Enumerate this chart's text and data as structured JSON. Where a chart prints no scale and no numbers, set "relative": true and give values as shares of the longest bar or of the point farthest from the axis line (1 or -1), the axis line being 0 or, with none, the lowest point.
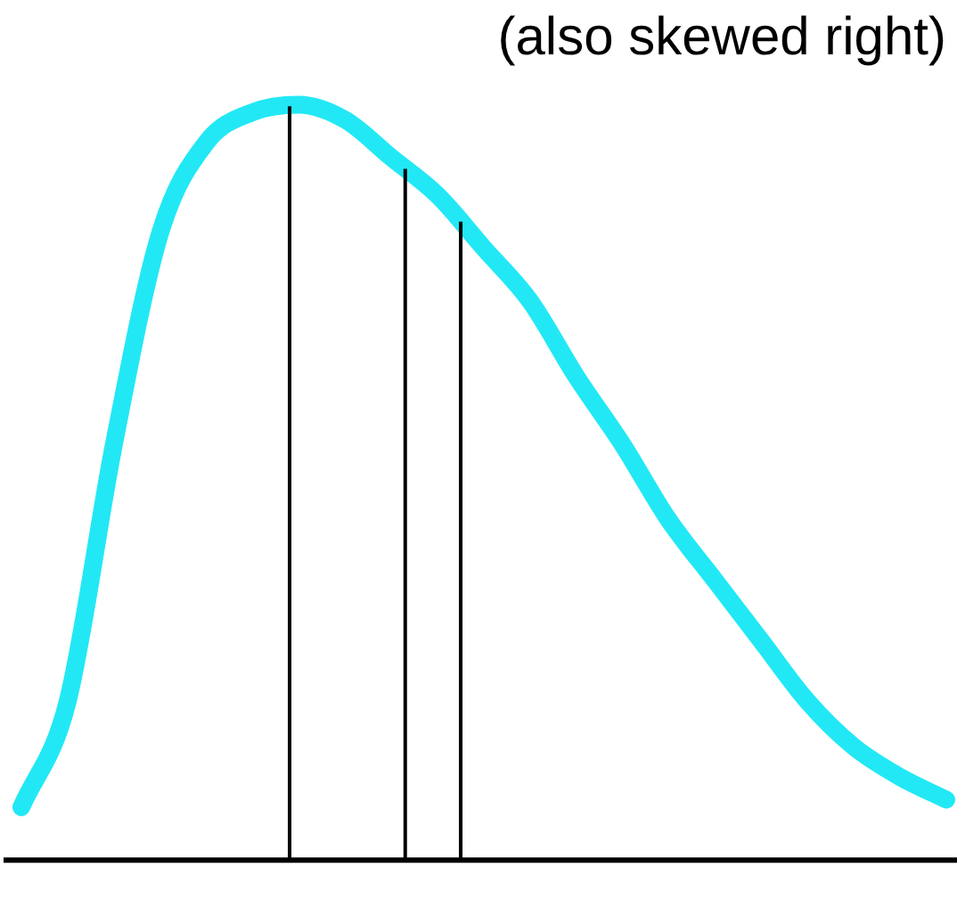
{
  "chart_data": {
    "type": "line",
    "title": "(also skewed right)",
    "relative": true,
    "categories": [
      null,
      null,
      null,
      null,
      null,
      null,
      null,
      null,
      null,
      null,
      null,
      null,
      null,
      null,
      null,
      null,
      null,
      null,
      null,
      null,
      null
    ],
    "series": [
      {
        "color": "#22e8f5",
        "values": [
          0.07,
          0.21,
          0.55,
          0.83,
          0.95,
          0.99,
          1.0,
          0.98,
          0.93,
          0.88,
          0.81,
          0.74,
          0.64,
          0.55,
          0.45,
          0.37,
          0.29,
          0.21,
          0.15,
          0.11,
          0.08
        ]
      }
    ],
    "marker": "none",
    "grid": false,
    "legend": false
  }
}
